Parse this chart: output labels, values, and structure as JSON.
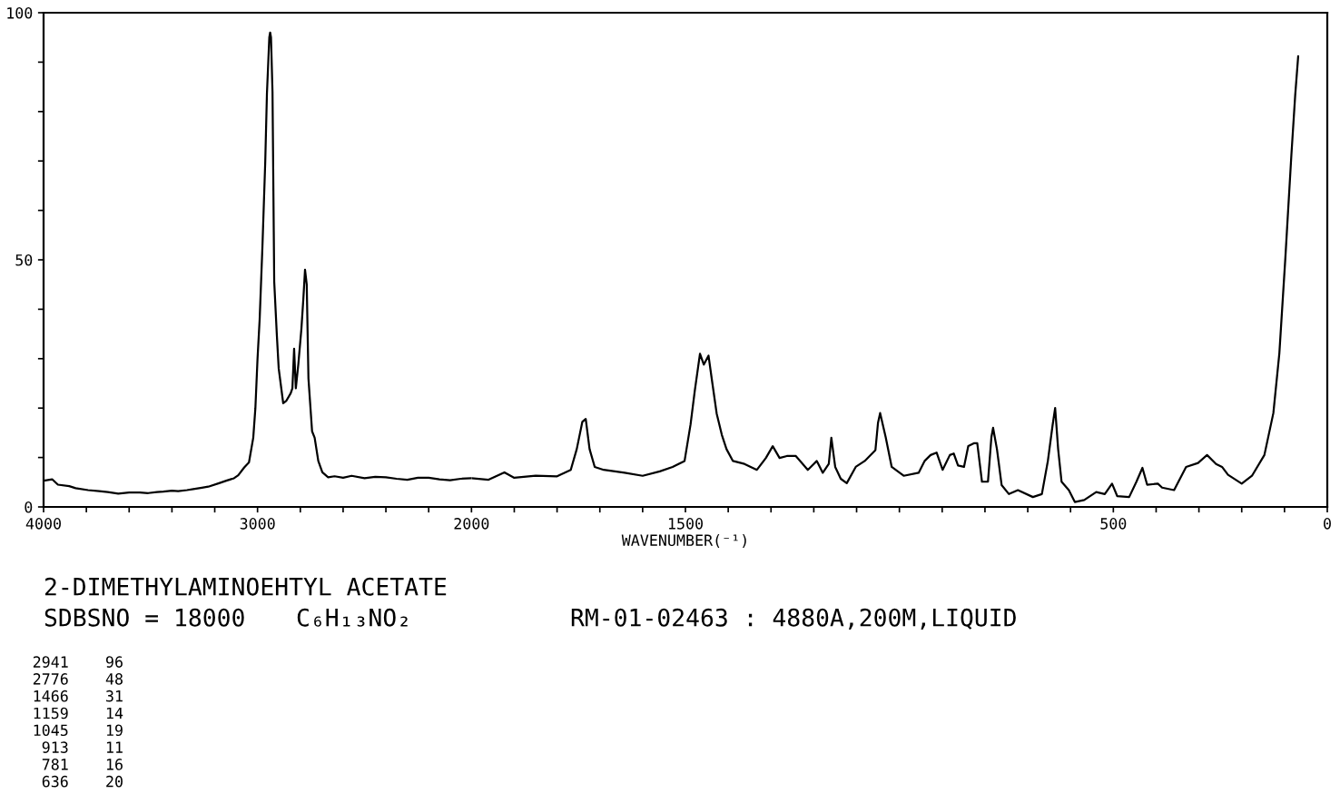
{
  "chart_data": [
    {
      "type": "line",
      "title": "2-DIMETHYLAMINOEHTYL ACETATE",
      "annotations": [
        "SDBSNO = 18000",
        "C₆H₁₃NO₂",
        "RM-01-02463 : 4880A,200M,LIQUID",
        "2941    96",
        "2776    48",
        "1466    31",
        "1159    14",
        "1045    19",
        "913    11",
        "781    16",
        "636    20"
      ],
      "color": "#000000",
      "x": [
        4000,
        3960,
        3933,
        3880,
        3850,
        3792,
        3740,
        3700,
        3651,
        3600,
        3550,
        3511,
        3470,
        3440,
        3400,
        3371,
        3330,
        3300,
        3260,
        3230,
        3180,
        3146,
        3110,
        3090,
        3062,
        3040,
        3020,
        3010,
        3000,
        2990,
        2977,
        2964,
        2956,
        2945,
        2941,
        2937,
        2930,
        2922,
        2910,
        2901,
        2880,
        2865,
        2845,
        2837,
        2829,
        2821,
        2809,
        2795,
        2786,
        2778,
        2770,
        2762,
        2745,
        2733,
        2716,
        2697,
        2670,
        2640,
        2600,
        2560,
        2500,
        2450,
        2400,
        2350,
        2300,
        2250,
        2200,
        2150,
        2100,
        2050,
        2000
      ],
      "values": [
        5.3,
        5.6,
        4.5,
        4.2,
        3.8,
        3.4,
        3.2,
        3.0,
        2.7,
        2.9,
        2.9,
        2.8,
        3.0,
        3.1,
        3.3,
        3.2,
        3.4,
        3.6,
        3.9,
        4.1,
        4.8,
        5.3,
        5.8,
        6.4,
        8.0,
        9.0,
        14.0,
        20.0,
        30.0,
        38.0,
        52.8,
        69.7,
        83.7,
        95.0,
        96.0,
        95.0,
        84.0,
        45.6,
        35.0,
        28.0,
        21.0,
        21.5,
        23.0,
        24.0,
        32.0,
        24.0,
        29.0,
        36.0,
        42.0,
        48.0,
        45.0,
        26.0,
        15.3,
        14.0,
        9.3,
        7.0,
        6.0,
        6.2,
        5.9,
        6.3,
        5.8,
        6.1,
        6.0,
        5.7,
        5.5,
        5.9,
        5.9,
        5.6,
        5.4,
        5.7,
        5.8
      ],
      "xlim": [
        4000,
        2000
      ],
      "xticks": [
        4000,
        {
          "value": 3800,
          "label": null
        },
        {
          "value": 3600,
          "label": null
        },
        {
          "value": 3400,
          "label": null
        },
        {
          "value": 3200,
          "label": null
        },
        3000,
        {
          "value": 2800,
          "label": null
        },
        {
          "value": 2600,
          "label": null
        },
        {
          "value": 2400,
          "label": null
        },
        {
          "value": 2200,
          "label": null
        },
        2000
      ],
      "ylim": [
        0,
        100
      ],
      "yticks": [
        0,
        {
          "value": 10,
          "label": null
        },
        {
          "value": 20,
          "label": null
        },
        {
          "value": 30,
          "label": null
        },
        {
          "value": 40,
          "label": null
        },
        50,
        {
          "value": 60,
          "label": null
        },
        {
          "value": 70,
          "label": null
        },
        {
          "value": 80,
          "label": null
        },
        {
          "value": 90,
          "label": null
        },
        100
      ]
    },
    {
      "type": "line",
      "xlabel": "WAVENUMBER(⁻¹)",
      "color": "#000000",
      "tick_labels": "x",
      "x": [
        2000,
        1960,
        1923,
        1900,
        1850,
        1800,
        1768,
        1754,
        1741,
        1733,
        1724,
        1712,
        1691,
        1642,
        1600,
        1560,
        1530,
        1502,
        1488,
        1478,
        1466,
        1457,
        1446,
        1437,
        1427,
        1415,
        1404,
        1389,
        1362,
        1333,
        1312,
        1296,
        1280,
        1263,
        1242,
        1214,
        1193,
        1179,
        1165,
        1159,
        1150,
        1137,
        1123,
        1102,
        1081,
        1056,
        1050,
        1045,
        1032,
        1018,
        990,
        955,
        941,
        927,
        913,
        899,
        882,
        873,
        863,
        849,
        839,
        825,
        818,
        807,
        793,
        785,
        781,
        772,
        761,
        744,
        723,
        688,
        667,
        653,
        642,
        636,
        629,
        621,
        604,
        590,
        568,
        540,
        520,
        503,
        491,
        463,
        446,
        432,
        421,
        396,
        386,
        358,
        330,
        302,
        281,
        260,
        246,
        232,
        200,
        176,
        147,
        126,
        112,
        98,
        84,
        75,
        68
      ],
      "values": [
        5.8,
        5.5,
        7.0,
        5.9,
        6.3,
        6.2,
        7.5,
        11.7,
        17.2,
        17.8,
        11.7,
        8.1,
        7.5,
        6.9,
        6.3,
        7.2,
        8.1,
        9.3,
        16.7,
        23.6,
        31.0,
        28.8,
        30.6,
        25.0,
        18.9,
        14.6,
        11.7,
        9.3,
        8.7,
        7.5,
        9.9,
        12.3,
        9.9,
        10.3,
        10.3,
        7.5,
        9.3,
        6.9,
        8.7,
        14.0,
        8.1,
        5.7,
        4.8,
        8.1,
        9.3,
        11.5,
        17.0,
        19.0,
        14.1,
        8.1,
        6.3,
        6.9,
        9.3,
        10.5,
        11.0,
        7.5,
        10.5,
        10.8,
        8.4,
        8.1,
        12.3,
        12.9,
        12.9,
        5.1,
        5.1,
        14.1,
        16.0,
        11.7,
        4.4,
        2.6,
        3.4,
        2.0,
        2.6,
        9.3,
        16.5,
        20.0,
        11.7,
        5.1,
        3.4,
        1.0,
        1.4,
        3.0,
        2.6,
        4.7,
        2.2,
        2.0,
        5.1,
        7.9,
        4.5,
        4.7,
        3.9,
        3.4,
        8.1,
        8.9,
        10.5,
        8.7,
        8.1,
        6.5,
        4.7,
        6.3,
        10.5,
        19.0,
        31.1,
        50.4,
        71.1,
        83.3,
        91.2
      ],
      "xlim": [
        2000,
        0
      ],
      "xticks": [
        {
          "value": 1900,
          "label": null
        },
        {
          "value": 1800,
          "label": null
        },
        {
          "value": 1700,
          "label": null
        },
        {
          "value": 1600,
          "label": null
        },
        1500,
        {
          "value": 1400,
          "label": null
        },
        {
          "value": 1300,
          "label": null
        },
        {
          "value": 1200,
          "label": null
        },
        {
          "value": 1100,
          "label": null
        },
        {
          "value": 1000,
          "label": null
        },
        {
          "value": 900,
          "label": null
        },
        {
          "value": 800,
          "label": null
        },
        {
          "value": 700,
          "label": null
        },
        {
          "value": 600,
          "label": null
        },
        500,
        {
          "value": 400,
          "label": null
        },
        {
          "value": 300,
          "label": null
        },
        {
          "value": 200,
          "label": null
        },
        {
          "value": 100,
          "label": null
        },
        0
      ],
      "ylim": [
        0,
        100
      ]
    }
  ]
}
